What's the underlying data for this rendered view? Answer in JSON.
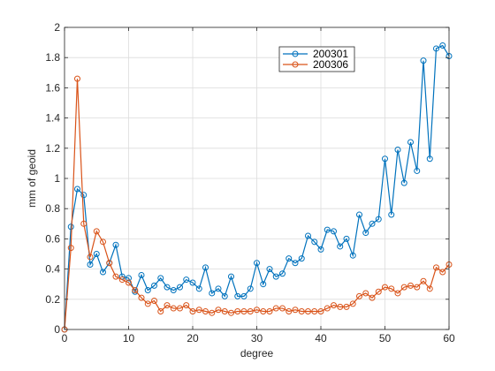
{
  "chart_data": {
    "type": "line",
    "title": "",
    "xlabel": "degree",
    "ylabel": "mm of geoid",
    "xlim": [
      0,
      60
    ],
    "ylim": [
      0,
      2
    ],
    "xticks": [
      0,
      10,
      20,
      30,
      40,
      50,
      60
    ],
    "yticks": [
      0,
      0.2,
      0.4,
      0.6,
      0.8,
      1,
      1.2,
      1.4,
      1.6,
      1.8,
      2
    ],
    "xtick_labels": [
      "0",
      "10",
      "20",
      "30",
      "40",
      "50",
      "60"
    ],
    "ytick_labels": [
      "0",
      "0.2",
      "0.4",
      "0.6",
      "0.8",
      "1",
      "1.2",
      "1.4",
      "1.6",
      "1.8",
      "2"
    ],
    "grid": true,
    "legend_position": "top-right",
    "marker": "circle",
    "series": [
      {
        "name": "200301",
        "color": "#0072BD",
        "x": [
          0,
          1,
          2,
          3,
          4,
          5,
          6,
          7,
          8,
          9,
          10,
          11,
          12,
          13,
          14,
          15,
          16,
          17,
          18,
          19,
          20,
          21,
          22,
          23,
          24,
          25,
          26,
          27,
          28,
          29,
          30,
          31,
          32,
          33,
          34,
          35,
          36,
          37,
          38,
          39,
          40,
          41,
          42,
          43,
          44,
          45,
          46,
          47,
          48,
          49,
          50,
          51,
          52,
          53,
          54,
          55,
          56,
          57,
          58,
          59,
          60
        ],
        "values": [
          0.0,
          0.68,
          0.93,
          0.89,
          0.43,
          0.5,
          0.38,
          0.44,
          0.56,
          0.35,
          0.34,
          0.25,
          0.36,
          0.26,
          0.29,
          0.34,
          0.28,
          0.26,
          0.28,
          0.33,
          0.31,
          0.27,
          0.41,
          0.24,
          0.27,
          0.22,
          0.35,
          0.22,
          0.22,
          0.27,
          0.44,
          0.3,
          0.4,
          0.35,
          0.37,
          0.47,
          0.44,
          0.47,
          0.62,
          0.58,
          0.53,
          0.66,
          0.65,
          0.55,
          0.6,
          0.49,
          0.76,
          0.64,
          0.7,
          0.73,
          1.13,
          0.76,
          1.19,
          0.97,
          1.24,
          1.05,
          1.78,
          1.13,
          1.86,
          1.88,
          1.81
        ]
      },
      {
        "name": "200306",
        "color": "#D95319",
        "x": [
          0,
          1,
          2,
          3,
          4,
          5,
          6,
          7,
          8,
          9,
          10,
          11,
          12,
          13,
          14,
          15,
          16,
          17,
          18,
          19,
          20,
          21,
          22,
          23,
          24,
          25,
          26,
          27,
          28,
          29,
          30,
          31,
          32,
          33,
          34,
          35,
          36,
          37,
          38,
          39,
          40,
          41,
          42,
          43,
          44,
          45,
          46,
          47,
          48,
          49,
          50,
          51,
          52,
          53,
          54,
          55,
          56,
          57,
          58,
          59,
          60
        ],
        "values": [
          0.0,
          0.54,
          1.66,
          0.7,
          0.48,
          0.65,
          0.58,
          0.44,
          0.35,
          0.33,
          0.31,
          0.26,
          0.21,
          0.17,
          0.19,
          0.12,
          0.16,
          0.14,
          0.14,
          0.16,
          0.12,
          0.13,
          0.12,
          0.11,
          0.13,
          0.12,
          0.11,
          0.12,
          0.12,
          0.12,
          0.13,
          0.12,
          0.12,
          0.14,
          0.14,
          0.12,
          0.13,
          0.12,
          0.12,
          0.12,
          0.12,
          0.14,
          0.16,
          0.15,
          0.15,
          0.17,
          0.22,
          0.24,
          0.21,
          0.25,
          0.28,
          0.27,
          0.24,
          0.28,
          0.29,
          0.28,
          0.32,
          0.27,
          0.41,
          0.38,
          0.43
        ]
      }
    ]
  }
}
